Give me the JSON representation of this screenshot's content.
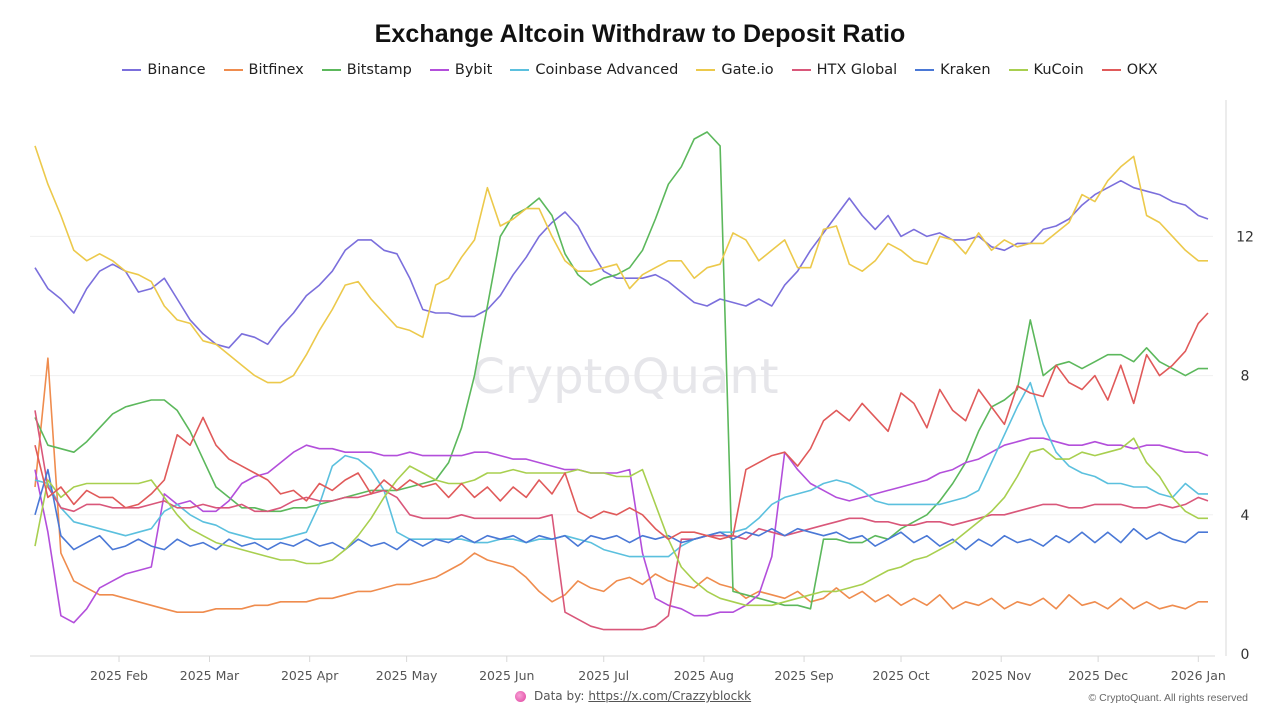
{
  "chart_data": {
    "type": "line",
    "title": "Exchange Altcoin Withdraw to Deposit Ratio",
    "xlabel": "",
    "ylabel": "",
    "x_unit": "days since 2025-01-06",
    "xlim": [
      0,
      363
    ],
    "ylim": [
      0,
      15
    ],
    "yticks": [
      0,
      4,
      8,
      12
    ],
    "ytick_labels": [
      "0",
      "4",
      "8",
      "12"
    ],
    "y_axis_position": "right",
    "xticks": [
      26,
      54,
      85,
      115,
      146,
      176,
      207,
      238,
      268,
      299,
      329,
      360
    ],
    "xtick_labels": [
      "2025 Feb",
      "2025 Mar",
      "2025 Apr",
      "2025 May",
      "2025 Jun",
      "2025 Jul",
      "2025 Aug",
      "2025 Sep",
      "2025 Oct",
      "2025 Nov",
      "2025 Dec",
      "2026 Jan"
    ],
    "grid": true,
    "legend_placement": "top-center",
    "watermark": "CryptoQuant",
    "x": [
      0,
      4,
      8,
      12,
      16,
      20,
      24,
      28,
      32,
      36,
      40,
      44,
      48,
      52,
      56,
      60,
      64,
      68,
      72,
      76,
      80,
      84,
      88,
      92,
      96,
      100,
      104,
      108,
      112,
      116,
      120,
      124,
      128,
      132,
      136,
      140,
      144,
      148,
      152,
      156,
      160,
      164,
      168,
      172,
      176,
      180,
      184,
      188,
      192,
      196,
      200,
      204,
      208,
      212,
      216,
      220,
      224,
      228,
      232,
      236,
      240,
      244,
      248,
      252,
      256,
      260,
      264,
      268,
      272,
      276,
      280,
      284,
      288,
      292,
      296,
      300,
      304,
      308,
      312,
      316,
      320,
      324,
      328,
      332,
      336,
      340,
      344,
      348,
      352,
      356,
      360,
      363
    ],
    "series": [
      {
        "name": "Binance",
        "color": "#7b6fdc",
        "values": [
          11.1,
          10.5,
          10.2,
          9.8,
          10.5,
          11.0,
          11.2,
          11.0,
          10.4,
          10.5,
          10.8,
          10.2,
          9.6,
          9.2,
          8.9,
          8.8,
          9.2,
          9.1,
          8.9,
          9.4,
          9.8,
          10.3,
          10.6,
          11.0,
          11.6,
          11.9,
          11.9,
          11.6,
          11.5,
          10.8,
          9.9,
          9.8,
          9.8,
          9.7,
          9.7,
          9.9,
          10.3,
          10.9,
          11.4,
          12.0,
          12.4,
          12.7,
          12.3,
          11.6,
          11.0,
          10.8,
          10.8,
          10.8,
          10.9,
          10.7,
          10.4,
          10.1,
          10.0,
          10.2,
          10.1,
          10.0,
          10.2,
          10.0,
          10.6,
          11.0,
          11.6,
          12.1,
          12.6,
          13.1,
          12.6,
          12.2,
          12.6,
          12.0,
          12.2,
          12.0,
          12.1,
          11.9,
          11.9,
          12.0,
          11.7,
          11.6,
          11.8,
          11.8,
          12.2,
          12.3,
          12.5,
          12.9,
          13.2,
          13.4,
          13.6,
          13.4,
          13.3,
          13.2,
          13.0,
          12.9,
          12.6,
          12.5
        ]
      },
      {
        "name": "Bitfinex",
        "color": "#ef8c4e",
        "values": [
          4.8,
          8.5,
          2.9,
          2.1,
          1.9,
          1.7,
          1.7,
          1.6,
          1.5,
          1.4,
          1.3,
          1.2,
          1.2,
          1.2,
          1.3,
          1.3,
          1.3,
          1.4,
          1.4,
          1.5,
          1.5,
          1.5,
          1.6,
          1.6,
          1.7,
          1.8,
          1.8,
          1.9,
          2.0,
          2.0,
          2.1,
          2.2,
          2.4,
          2.6,
          2.9,
          2.7,
          2.6,
          2.5,
          2.2,
          1.8,
          1.5,
          1.7,
          2.1,
          1.9,
          1.8,
          2.1,
          2.2,
          2.0,
          2.3,
          2.1,
          2.0,
          1.9,
          2.2,
          2.0,
          1.9,
          1.6,
          1.8,
          1.7,
          1.6,
          1.8,
          1.5,
          1.6,
          1.9,
          1.6,
          1.8,
          1.5,
          1.7,
          1.4,
          1.6,
          1.4,
          1.7,
          1.3,
          1.5,
          1.4,
          1.6,
          1.3,
          1.5,
          1.4,
          1.6,
          1.3,
          1.7,
          1.4,
          1.5,
          1.3,
          1.6,
          1.3,
          1.5,
          1.3,
          1.4,
          1.3,
          1.5,
          1.5
        ]
      },
      {
        "name": "Bitstamp",
        "color": "#5cb85c",
        "values": [
          6.8,
          6.0,
          5.9,
          5.8,
          6.1,
          6.5,
          6.9,
          7.1,
          7.2,
          7.3,
          7.3,
          7.0,
          6.4,
          5.6,
          4.8,
          4.5,
          4.2,
          4.2,
          4.1,
          4.1,
          4.2,
          4.2,
          4.3,
          4.4,
          4.5,
          4.6,
          4.7,
          4.7,
          4.7,
          4.8,
          4.9,
          5.0,
          5.5,
          6.5,
          8.0,
          10.0,
          12.0,
          12.6,
          12.8,
          13.1,
          12.6,
          11.5,
          10.9,
          10.6,
          10.8,
          10.9,
          11.1,
          11.6,
          12.5,
          13.5,
          14.0,
          14.8,
          15.0,
          14.6,
          1.8,
          1.7,
          1.6,
          1.5,
          1.4,
          1.4,
          1.3,
          3.3,
          3.3,
          3.2,
          3.2,
          3.4,
          3.3,
          3.6,
          3.8,
          4.0,
          4.4,
          4.9,
          5.5,
          6.4,
          7.1,
          7.3,
          7.6,
          9.6,
          8.0,
          8.3,
          8.4,
          8.2,
          8.4,
          8.6,
          8.6,
          8.4,
          8.8,
          8.4,
          8.2,
          8.0,
          8.2,
          8.2
        ]
      },
      {
        "name": "Bybit",
        "color": "#b34fdb",
        "values": [
          5.3,
          3.5,
          1.1,
          0.9,
          1.3,
          1.9,
          2.1,
          2.3,
          2.4,
          2.5,
          4.6,
          4.3,
          4.4,
          4.1,
          4.1,
          4.4,
          4.9,
          5.1,
          5.2,
          5.5,
          5.8,
          6.0,
          5.9,
          5.9,
          5.8,
          5.8,
          5.8,
          5.7,
          5.7,
          5.8,
          5.7,
          5.7,
          5.7,
          5.7,
          5.8,
          5.8,
          5.7,
          5.6,
          5.6,
          5.5,
          5.4,
          5.3,
          5.3,
          5.2,
          5.2,
          5.2,
          5.3,
          2.9,
          1.6,
          1.4,
          1.3,
          1.1,
          1.1,
          1.2,
          1.2,
          1.4,
          1.7,
          2.8,
          5.8,
          5.3,
          4.9,
          4.7,
          4.5,
          4.4,
          4.5,
          4.6,
          4.7,
          4.8,
          4.9,
          5.0,
          5.2,
          5.3,
          5.5,
          5.6,
          5.8,
          6.0,
          6.1,
          6.2,
          6.2,
          6.1,
          6.0,
          6.0,
          6.1,
          6.0,
          6.0,
          5.9,
          6.0,
          6.0,
          5.9,
          5.8,
          5.8,
          5.7
        ]
      },
      {
        "name": "Coinbase Advanced",
        "color": "#5bc0de",
        "values": [
          5.0,
          4.9,
          4.2,
          3.8,
          3.7,
          3.6,
          3.5,
          3.4,
          3.5,
          3.6,
          4.1,
          4.3,
          4.0,
          3.8,
          3.7,
          3.5,
          3.4,
          3.3,
          3.3,
          3.3,
          3.4,
          3.5,
          4.3,
          5.4,
          5.7,
          5.6,
          5.3,
          4.7,
          3.5,
          3.3,
          3.3,
          3.3,
          3.3,
          3.3,
          3.2,
          3.2,
          3.3,
          3.3,
          3.2,
          3.3,
          3.3,
          3.4,
          3.3,
          3.2,
          3.0,
          2.9,
          2.8,
          2.8,
          2.8,
          2.8,
          3.1,
          3.3,
          3.4,
          3.5,
          3.5,
          3.6,
          3.9,
          4.3,
          4.5,
          4.6,
          4.7,
          4.9,
          5.0,
          4.9,
          4.7,
          4.4,
          4.3,
          4.3,
          4.3,
          4.3,
          4.3,
          4.4,
          4.5,
          4.7,
          5.5,
          6.3,
          7.1,
          7.8,
          6.6,
          5.8,
          5.4,
          5.2,
          5.1,
          4.9,
          4.9,
          4.8,
          4.8,
          4.6,
          4.5,
          4.9,
          4.6,
          4.6
        ]
      },
      {
        "name": "Gate.io",
        "color": "#ecc94b",
        "values": [
          14.6,
          13.5,
          12.6,
          11.6,
          11.3,
          11.5,
          11.3,
          11.0,
          10.9,
          10.7,
          10.0,
          9.6,
          9.5,
          9.0,
          8.9,
          8.6,
          8.3,
          8.0,
          7.8,
          7.8,
          8.0,
          8.6,
          9.3,
          9.9,
          10.6,
          10.7,
          10.2,
          9.8,
          9.4,
          9.3,
          9.1,
          10.6,
          10.8,
          11.4,
          11.9,
          13.4,
          12.3,
          12.5,
          12.8,
          12.8,
          12.0,
          11.3,
          11.0,
          11.0,
          11.1,
          11.2,
          10.5,
          10.9,
          11.1,
          11.3,
          11.3,
          10.8,
          11.1,
          11.2,
          12.1,
          11.9,
          11.3,
          11.6,
          11.9,
          11.1,
          11.1,
          12.2,
          12.3,
          11.2,
          11.0,
          11.3,
          11.8,
          11.6,
          11.3,
          11.2,
          12.0,
          11.9,
          11.5,
          12.1,
          11.6,
          11.9,
          11.7,
          11.8,
          11.8,
          12.1,
          12.4,
          13.2,
          13.0,
          13.6,
          14.0,
          14.3,
          12.6,
          12.4,
          12.0,
          11.6,
          11.3,
          11.3
        ]
      },
      {
        "name": "HTX Global",
        "color": "#d9577a",
        "values": [
          7.0,
          4.8,
          4.2,
          4.1,
          4.3,
          4.3,
          4.2,
          4.2,
          4.2,
          4.3,
          4.4,
          4.2,
          4.2,
          4.3,
          4.2,
          4.2,
          4.3,
          4.1,
          4.1,
          4.2,
          4.4,
          4.5,
          4.4,
          4.4,
          4.5,
          4.5,
          4.6,
          4.7,
          4.5,
          4.0,
          3.9,
          3.9,
          3.9,
          4.0,
          3.9,
          3.9,
          3.9,
          3.9,
          3.9,
          3.9,
          4.0,
          1.2,
          1.0,
          0.8,
          0.7,
          0.7,
          0.7,
          0.7,
          0.8,
          1.1,
          3.3,
          3.3,
          3.4,
          3.4,
          3.4,
          3.3,
          3.6,
          3.5,
          3.4,
          3.5,
          3.6,
          3.7,
          3.8,
          3.9,
          3.9,
          3.8,
          3.8,
          3.7,
          3.7,
          3.8,
          3.8,
          3.7,
          3.8,
          3.9,
          4.0,
          4.0,
          4.1,
          4.2,
          4.3,
          4.3,
          4.2,
          4.2,
          4.3,
          4.3,
          4.3,
          4.2,
          4.2,
          4.3,
          4.2,
          4.3,
          4.5,
          4.4
        ]
      },
      {
        "name": "Kraken",
        "color": "#4a78d6",
        "values": [
          4.0,
          5.3,
          3.4,
          3.0,
          3.2,
          3.4,
          3.0,
          3.1,
          3.3,
          3.1,
          3.0,
          3.3,
          3.1,
          3.2,
          3.0,
          3.3,
          3.1,
          3.2,
          3.0,
          3.2,
          3.1,
          3.3,
          3.1,
          3.2,
          3.0,
          3.3,
          3.1,
          3.2,
          3.0,
          3.3,
          3.1,
          3.3,
          3.2,
          3.4,
          3.2,
          3.4,
          3.3,
          3.4,
          3.2,
          3.4,
          3.3,
          3.4,
          3.1,
          3.4,
          3.3,
          3.4,
          3.2,
          3.4,
          3.3,
          3.4,
          3.2,
          3.3,
          3.4,
          3.5,
          3.3,
          3.5,
          3.4,
          3.6,
          3.4,
          3.6,
          3.5,
          3.4,
          3.5,
          3.3,
          3.4,
          3.1,
          3.3,
          3.5,
          3.2,
          3.4,
          3.1,
          3.3,
          3.0,
          3.3,
          3.1,
          3.4,
          3.2,
          3.3,
          3.1,
          3.4,
          3.2,
          3.5,
          3.2,
          3.5,
          3.2,
          3.6,
          3.3,
          3.5,
          3.3,
          3.2,
          3.5,
          3.5
        ]
      },
      {
        "name": "KuCoin",
        "color": "#a8cf4f",
        "values": [
          3.1,
          5.0,
          4.5,
          4.8,
          4.9,
          4.9,
          4.9,
          4.9,
          4.9,
          5.0,
          4.5,
          4.0,
          3.6,
          3.4,
          3.2,
          3.1,
          3.0,
          2.9,
          2.8,
          2.7,
          2.7,
          2.6,
          2.6,
          2.7,
          3.0,
          3.4,
          3.9,
          4.5,
          5.0,
          5.4,
          5.2,
          5.0,
          4.9,
          4.9,
          5.0,
          5.2,
          5.2,
          5.3,
          5.2,
          5.2,
          5.2,
          5.2,
          5.3,
          5.2,
          5.2,
          5.1,
          5.1,
          5.3,
          4.3,
          3.3,
          2.5,
          2.1,
          1.8,
          1.6,
          1.5,
          1.4,
          1.4,
          1.4,
          1.5,
          1.6,
          1.7,
          1.8,
          1.8,
          1.9,
          2.0,
          2.2,
          2.4,
          2.5,
          2.7,
          2.8,
          3.0,
          3.2,
          3.5,
          3.8,
          4.1,
          4.5,
          5.1,
          5.8,
          5.9,
          5.6,
          5.6,
          5.8,
          5.7,
          5.8,
          5.9,
          6.2,
          5.5,
          5.1,
          4.5,
          4.1,
          3.9,
          3.9
        ]
      },
      {
        "name": "OKX",
        "color": "#e05a5a",
        "values": [
          6.0,
          4.5,
          4.8,
          4.3,
          4.7,
          4.5,
          4.5,
          4.2,
          4.3,
          4.6,
          5.0,
          6.3,
          6.0,
          6.8,
          6.0,
          5.6,
          5.4,
          5.2,
          5.0,
          4.6,
          4.7,
          4.4,
          4.9,
          4.7,
          5.0,
          5.2,
          4.6,
          5.0,
          4.7,
          5.0,
          4.8,
          4.9,
          4.5,
          4.9,
          4.5,
          4.8,
          4.4,
          4.8,
          4.5,
          5.0,
          4.6,
          5.2,
          4.1,
          3.9,
          4.1,
          4.0,
          4.2,
          4.0,
          3.6,
          3.3,
          3.5,
          3.5,
          3.4,
          3.3,
          3.4,
          5.3,
          5.5,
          5.7,
          5.8,
          5.4,
          5.9,
          6.7,
          7.0,
          6.7,
          7.2,
          6.8,
          6.4,
          7.5,
          7.2,
          6.5,
          7.6,
          7.0,
          6.7,
          7.6,
          7.1,
          6.6,
          7.7,
          7.5,
          7.4,
          8.3,
          7.8,
          7.6,
          8.0,
          7.3,
          8.3,
          7.2,
          8.6,
          8.0,
          8.3,
          8.7,
          9.5,
          9.8
        ]
      }
    ]
  },
  "legend": {
    "items": [
      "Binance",
      "Bitfinex",
      "Bitstamp",
      "Bybit",
      "Coinbase Advanced",
      "Gate.io",
      "HTX Global",
      "Kraken",
      "KuCoin",
      "OKX"
    ]
  },
  "footer": {
    "data_by_label": "Data by:",
    "data_by_link": "https://x.com/Crazzyblockk",
    "copyright": "© CryptoQuant. All rights reserved"
  },
  "colors": {
    "grid": "#f0f0f0",
    "axis": "#d8d8d8",
    "watermark": "#e6e6ea"
  }
}
